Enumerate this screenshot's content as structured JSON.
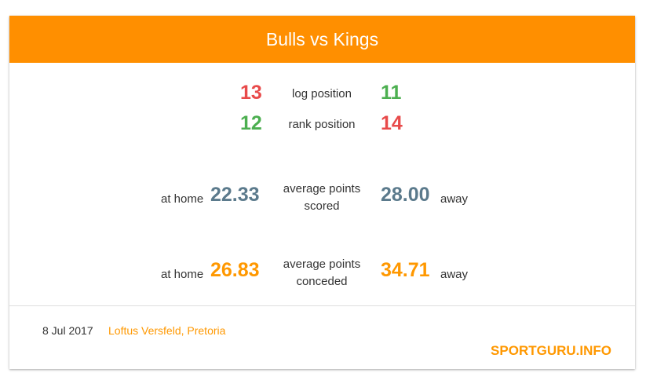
{
  "match": {
    "title": "Bulls vs Kings"
  },
  "log_position": {
    "home": "13",
    "label": "log position",
    "away": "11"
  },
  "rank_position": {
    "home": "12",
    "label": "rank position",
    "away": "14"
  },
  "points_scored": {
    "home_label": "at home",
    "home": "22.33",
    "label_line1": "average points",
    "label_line2": "scored",
    "away": "28.00",
    "away_label": "away"
  },
  "points_conceded": {
    "home_label": "at home",
    "home": "26.83",
    "label_line1": "average points",
    "label_line2": "conceded",
    "away": "34.71",
    "away_label": "away"
  },
  "footer": {
    "date": "8 Jul 2017",
    "venue": "Loftus Versfeld, Pretoria",
    "brand": "SPORTGURU.INFO"
  },
  "colors": {
    "header_bg": "#ff8f00",
    "red": "#e84a4a",
    "green": "#4caf50",
    "slate": "#5b7a8c",
    "orange": "#ff9800"
  }
}
